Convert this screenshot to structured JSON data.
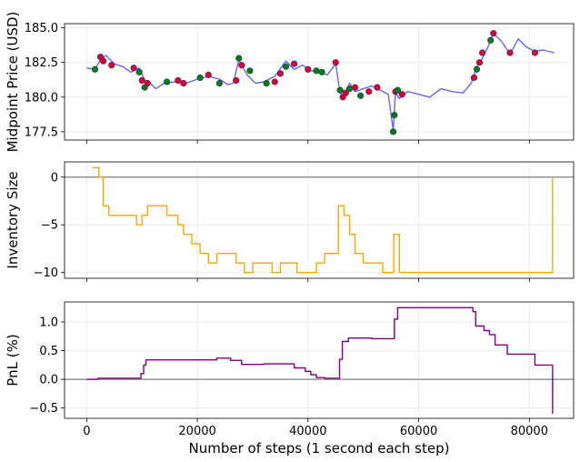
{
  "chart_data": [
    {
      "type": "line",
      "ylabel": "Midpoint Price (USD)",
      "xlabel": "",
      "xlim": [
        -4000,
        88000
      ],
      "ylim": [
        176.9,
        185.3
      ],
      "yticks": [
        177.5,
        180.0,
        182.5,
        185.0
      ],
      "ytick_labels": [
        "177.5",
        "180.0",
        "182.5",
        "185.0"
      ],
      "grid": true,
      "line_color": "#6666ee",
      "series": [
        {
          "x": [
            0,
            1500,
            2500,
            3500,
            5000,
            6500,
            8000,
            9500,
            10500,
            11500,
            12500,
            14000,
            16000,
            18000,
            20000,
            22000,
            24000,
            25500,
            26500,
            27500,
            29000,
            30500,
            32000,
            34000,
            36000,
            37500,
            39000,
            40500,
            42000,
            43500,
            45000,
            45800,
            46500,
            47500,
            48500,
            50000,
            51500,
            53000,
            54500,
            55400,
            55800,
            56500,
            58000,
            60000,
            62000,
            64000,
            66000,
            68000,
            69500,
            70500,
            71500,
            72500,
            73500,
            75000,
            76500,
            78000,
            79500,
            81000,
            82500,
            84500
          ],
          "y": [
            182.1,
            182.0,
            182.7,
            183.0,
            182.4,
            182.2,
            181.8,
            182.1,
            181.2,
            181.0,
            180.6,
            181.0,
            181.1,
            181.0,
            181.3,
            181.5,
            181.3,
            180.9,
            181.0,
            182.7,
            181.6,
            181.0,
            181.1,
            181.5,
            182.6,
            182.0,
            182.3,
            181.9,
            181.8,
            181.6,
            182.4,
            180.3,
            180.1,
            181.0,
            180.4,
            180.6,
            180.8,
            180.5,
            180.2,
            177.6,
            180.3,
            179.9,
            180.4,
            180.2,
            180.0,
            180.6,
            180.4,
            180.3,
            181.0,
            182.2,
            182.8,
            183.6,
            184.6,
            184.0,
            183.1,
            184.2,
            183.6,
            183.3,
            183.4,
            183.2
          ]
        }
      ],
      "markers": {
        "buy_color": "#008000",
        "sell_color": "#dd0022",
        "points": [
          [
            1500,
            182.0,
            "g"
          ],
          [
            2500,
            182.9,
            "r"
          ],
          [
            3000,
            182.6,
            "r"
          ],
          [
            4500,
            182.3,
            "r"
          ],
          [
            8500,
            182.1,
            "r"
          ],
          [
            9500,
            181.8,
            "g"
          ],
          [
            10000,
            181.2,
            "r"
          ],
          [
            10500,
            180.7,
            "g"
          ],
          [
            11000,
            181.0,
            "r"
          ],
          [
            14500,
            181.1,
            "g"
          ],
          [
            16500,
            181.2,
            "r"
          ],
          [
            17500,
            181.0,
            "r"
          ],
          [
            20500,
            181.4,
            "g"
          ],
          [
            22000,
            181.6,
            "r"
          ],
          [
            24000,
            181.0,
            "g"
          ],
          [
            27000,
            181.2,
            "r"
          ],
          [
            27500,
            182.8,
            "g"
          ],
          [
            28000,
            182.3,
            "r"
          ],
          [
            29500,
            181.9,
            "g"
          ],
          [
            32500,
            181.0,
            "g"
          ],
          [
            34000,
            181.1,
            "r"
          ],
          [
            35000,
            181.7,
            "r"
          ],
          [
            36000,
            182.2,
            "g"
          ],
          [
            37500,
            182.4,
            "r"
          ],
          [
            40000,
            182.0,
            "r"
          ],
          [
            41500,
            181.9,
            "g"
          ],
          [
            42500,
            181.8,
            "g"
          ],
          [
            45000,
            182.5,
            "r"
          ],
          [
            45800,
            180.5,
            "g"
          ],
          [
            46300,
            180.0,
            "r"
          ],
          [
            46800,
            180.3,
            "r"
          ],
          [
            47500,
            180.6,
            "g"
          ],
          [
            48500,
            180.7,
            "r"
          ],
          [
            49500,
            180.1,
            "g"
          ],
          [
            51000,
            180.4,
            "r"
          ],
          [
            52500,
            180.7,
            "r"
          ],
          [
            55400,
            177.5,
            "g"
          ],
          [
            55600,
            178.7,
            "g"
          ],
          [
            55800,
            180.4,
            "r"
          ],
          [
            56200,
            180.5,
            "g"
          ],
          [
            57000,
            180.2,
            "r"
          ],
          [
            70000,
            181.4,
            "r"
          ],
          [
            70500,
            182.0,
            "g"
          ],
          [
            71000,
            182.5,
            "r"
          ],
          [
            71500,
            183.2,
            "r"
          ],
          [
            73000,
            184.1,
            "g"
          ],
          [
            73500,
            184.6,
            "r"
          ],
          [
            76500,
            183.2,
            "r"
          ],
          [
            81000,
            183.2,
            "r"
          ]
        ]
      }
    },
    {
      "type": "line",
      "ylabel": "Inventory Size",
      "xlabel": "",
      "xlim": [
        -4000,
        88000
      ],
      "ylim": [
        -10.6,
        1.6
      ],
      "yticks": [
        -10,
        -5,
        0
      ],
      "ytick_labels": [
        "−10",
        "−5",
        "0"
      ],
      "grid": true,
      "line_color": "#ffa500",
      "reference_line": 0,
      "series": [
        {
          "x": [
            1000,
            2200,
            2200,
            3000,
            3000,
            4000,
            4000,
            9000,
            9000,
            10000,
            10000,
            11000,
            11000,
            14500,
            14500,
            16500,
            16500,
            17500,
            17500,
            19000,
            19000,
            20500,
            20500,
            22000,
            22000,
            23500,
            23500,
            27000,
            27000,
            28500,
            28500,
            30000,
            30000,
            33500,
            33500,
            35000,
            35000,
            38000,
            38000,
            41500,
            41500,
            43000,
            43000,
            45500,
            45500,
            46500,
            46500,
            47500,
            47500,
            48500,
            48500,
            50000,
            50000,
            53500,
            53500,
            55500,
            55500,
            56500,
            56500,
            84200,
            84200
          ],
          "y": [
            1,
            1,
            0,
            0,
            -3,
            -3,
            -4,
            -4,
            -5,
            -5,
            -4,
            -4,
            -3,
            -3,
            -4,
            -4,
            -5,
            -5,
            -6,
            -6,
            -7,
            -7,
            -8,
            -8,
            -9,
            -9,
            -8,
            -8,
            -9,
            -9,
            -10,
            -10,
            -9,
            -9,
            -10,
            -10,
            -9,
            -9,
            -10,
            -10,
            -9,
            -9,
            -8,
            -8,
            -3,
            -3,
            -4,
            -4,
            -6,
            -6,
            -8,
            -8,
            -9,
            -9,
            -10,
            -10,
            -6,
            -6,
            -10,
            -10,
            0
          ]
        }
      ]
    },
    {
      "type": "line",
      "ylabel": "PnL (%)",
      "xlabel": "Number of steps (1 second each step)",
      "xlim": [
        -4000,
        88000
      ],
      "ylim": [
        -0.68,
        1.35
      ],
      "yticks": [
        -0.5,
        0.0,
        0.5,
        1.0
      ],
      "ytick_labels": [
        "−0.5",
        "0.0",
        "0.5",
        "1.0"
      ],
      "xticks": [
        0,
        20000,
        40000,
        60000,
        80000
      ],
      "xtick_labels": [
        "0",
        "20000",
        "40000",
        "60000",
        "80000"
      ],
      "grid": true,
      "line_color": "#800080",
      "reference_line": 0,
      "series": [
        {
          "x": [
            0,
            2000,
            2000,
            9800,
            9800,
            10300,
            10300,
            10700,
            10700,
            23500,
            23500,
            26000,
            26000,
            28000,
            28000,
            32000,
            32000,
            37500,
            37500,
            39500,
            39500,
            40500,
            40500,
            41500,
            41500,
            43000,
            43000,
            45700,
            45700,
            46200,
            46200,
            47300,
            47300,
            51500,
            51500,
            55600,
            55600,
            56200,
            56200,
            69800,
            69800,
            70300,
            70300,
            71800,
            71800,
            72800,
            72800,
            73800,
            73800,
            76000,
            76000,
            81000,
            81000,
            84200,
            84200
          ],
          "y": [
            0.0,
            0.0,
            0.02,
            0.02,
            0.1,
            0.1,
            0.25,
            0.25,
            0.34,
            0.34,
            0.37,
            0.37,
            0.33,
            0.33,
            0.26,
            0.26,
            0.27,
            0.27,
            0.2,
            0.2,
            0.14,
            0.14,
            0.08,
            0.08,
            0.03,
            0.03,
            0.02,
            0.02,
            0.35,
            0.35,
            0.66,
            0.66,
            0.72,
            0.72,
            0.71,
            0.71,
            1.05,
            1.05,
            1.25,
            1.25,
            1.18,
            1.18,
            0.93,
            0.93,
            0.85,
            0.85,
            0.78,
            0.78,
            0.6,
            0.6,
            0.44,
            0.44,
            0.25,
            0.25,
            -0.6
          ]
        }
      ]
    }
  ]
}
